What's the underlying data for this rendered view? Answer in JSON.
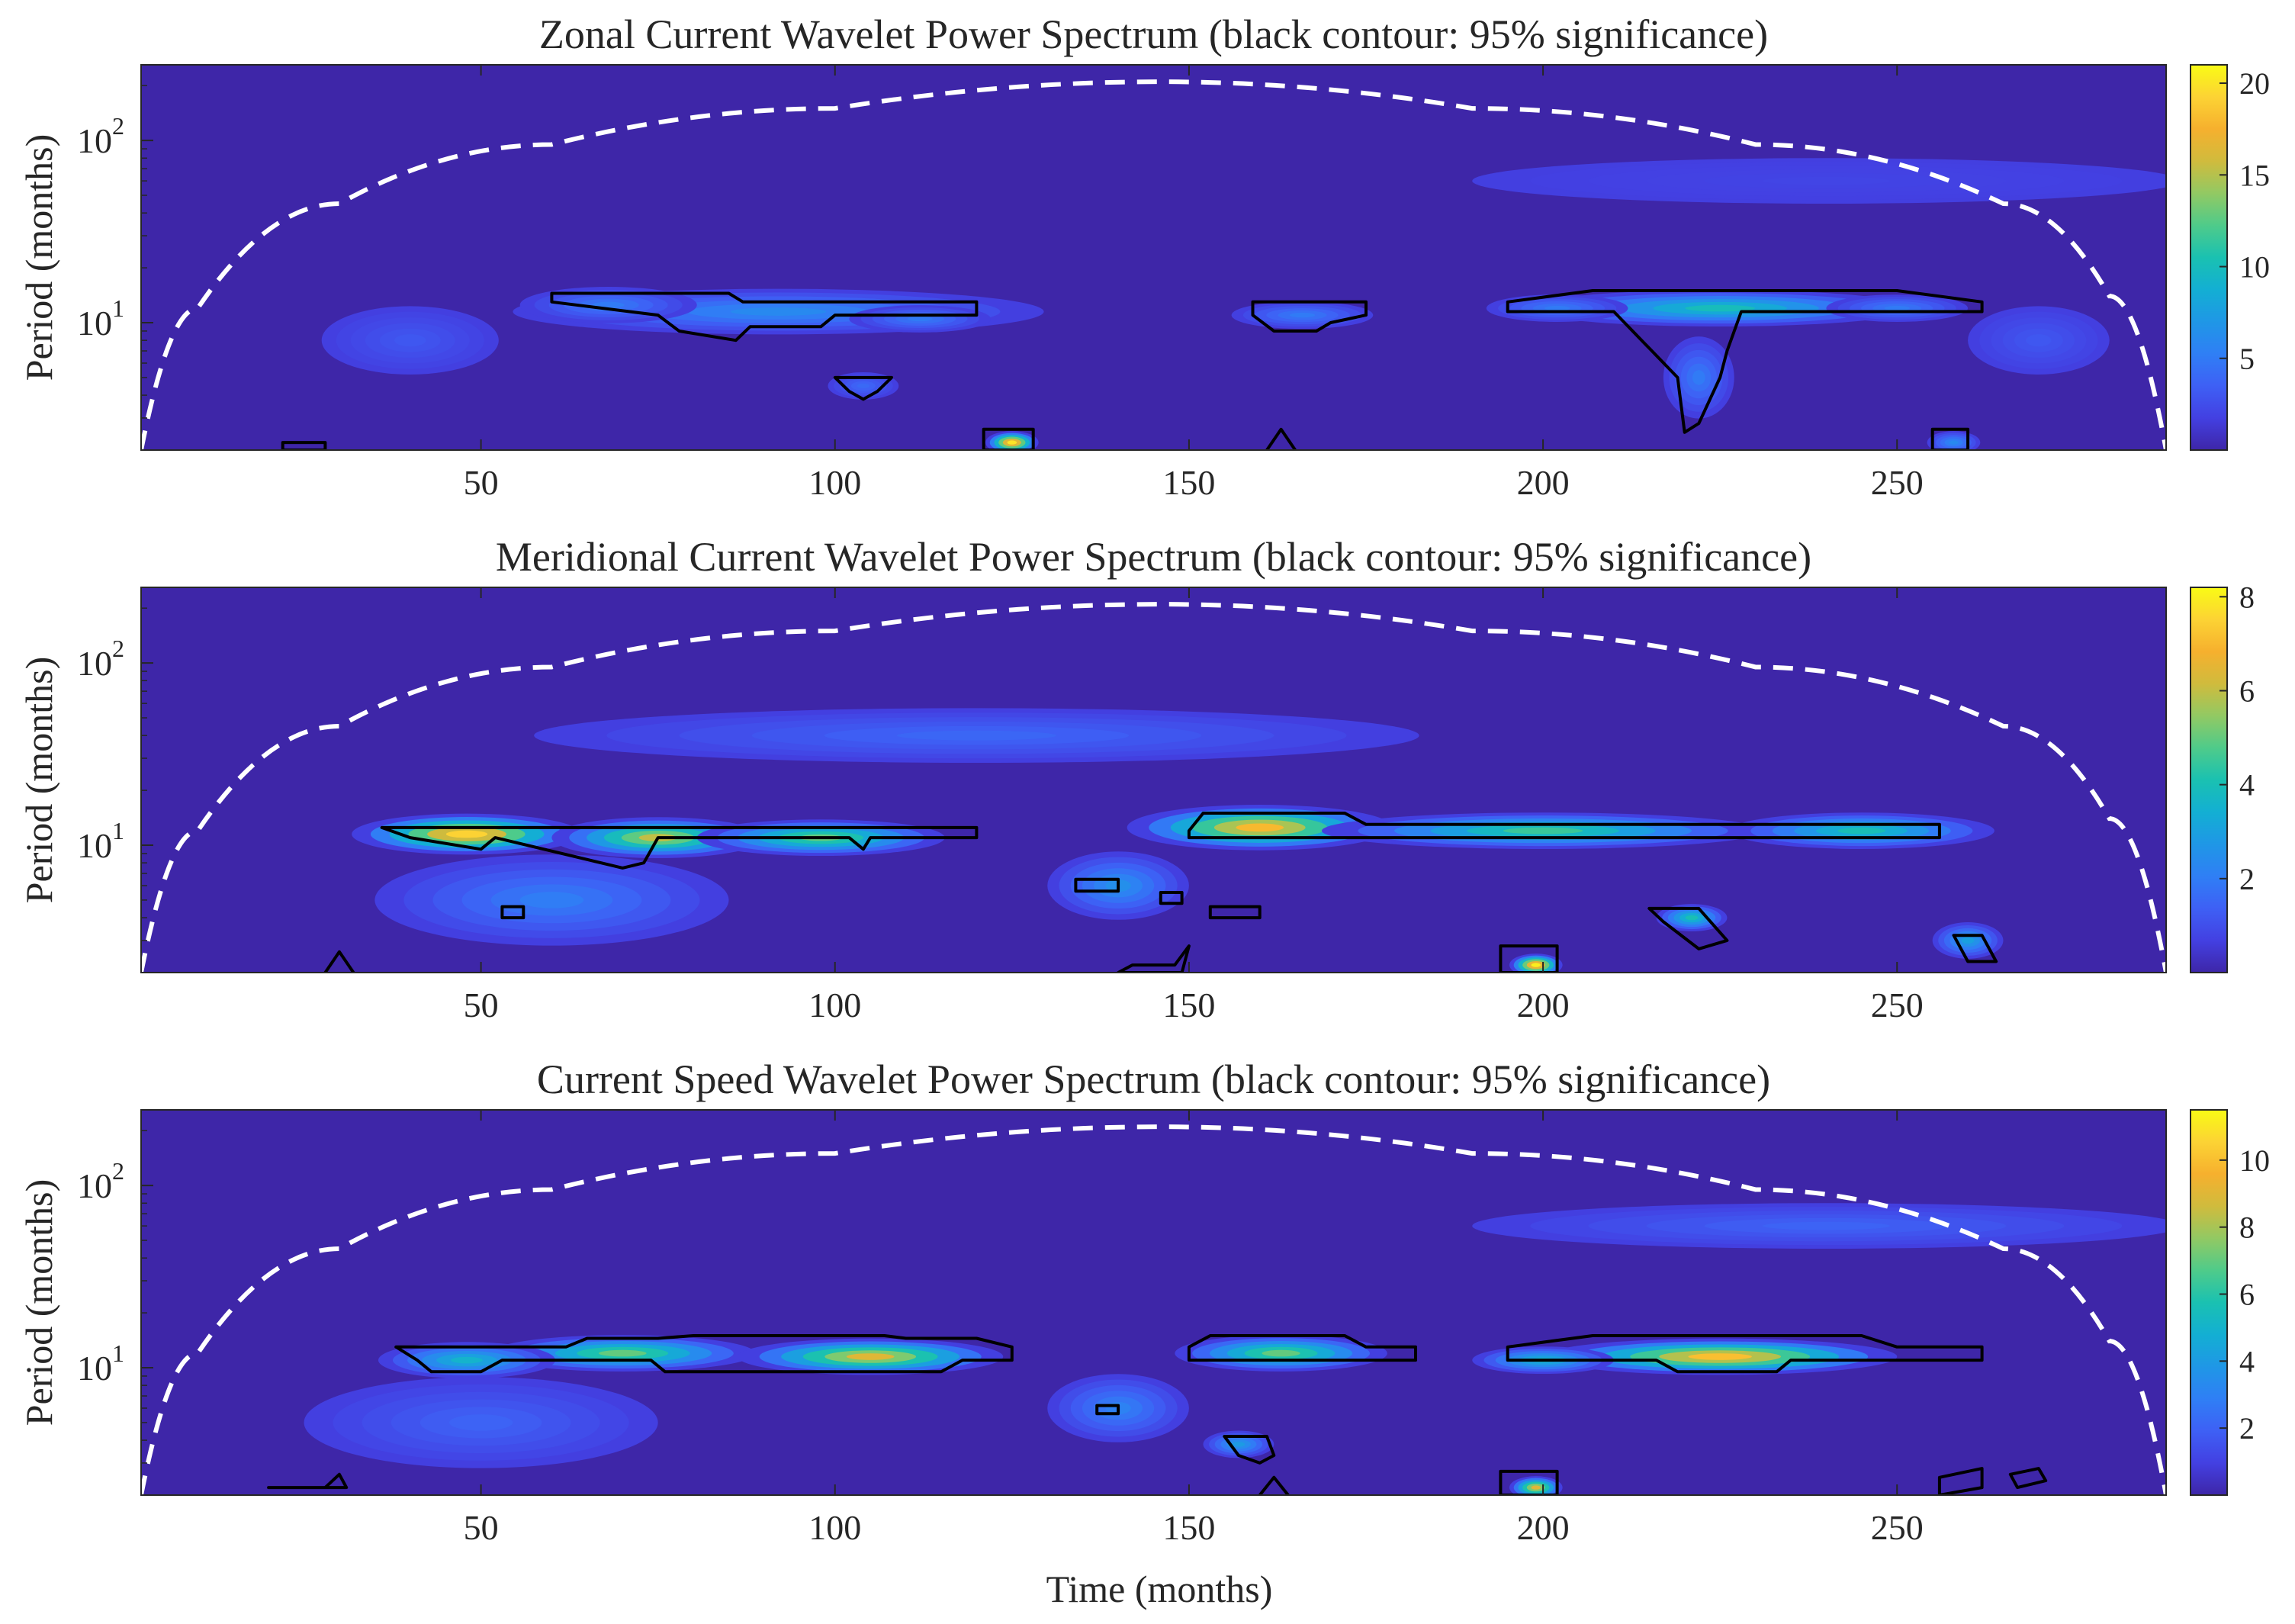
{
  "figure": {
    "xlabel": "Time (months)"
  },
  "colormap": [
    "#3e26a8",
    "#4340e2",
    "#3e60f5",
    "#2f7ff5",
    "#1f97e6",
    "#13afd3",
    "#1ac1b1",
    "#4fcb8a",
    "#92c963",
    "#d0bb3d",
    "#f6b02e",
    "#fcd334",
    "#f9fb15"
  ],
  "chart_data": [
    {
      "type": "heatmap",
      "title": "Zonal Current Wavelet Power Spectrum (black contour: 95% significance)",
      "xlabel": "",
      "ylabel": "Period (months)",
      "x_ticks": [
        50,
        100,
        150,
        200,
        250
      ],
      "y_ticks": [
        {
          "value": 10,
          "label": "10",
          "exp": "1"
        },
        {
          "value": 100,
          "label": "10",
          "exp": "2"
        }
      ],
      "xlim": [
        2,
        288
      ],
      "ylim": [
        2,
        260
      ],
      "y_scale": "log",
      "colorbar": {
        "range": [
          0,
          21
        ],
        "ticks": [
          5,
          10,
          15,
          20
        ]
      },
      "cone_of_influence": {
        "style": "white dashed",
        "x": [
          2,
          10,
          30,
          60,
          100,
          146,
          190,
          230,
          265,
          280,
          288
        ],
        "y": [
          2,
          12,
          45,
          95,
          150,
          210,
          150,
          95,
          45,
          14,
          2
        ]
      },
      "power_blobs": [
        {
          "x": 92,
          "period": 11.5,
          "power": 6,
          "dx": 30,
          "dlog": 0.1
        },
        {
          "x": 68,
          "period": 12.5,
          "power": 5,
          "dx": 10,
          "dlog": 0.08
        },
        {
          "x": 112,
          "period": 10.5,
          "power": 5,
          "dx": 8,
          "dlog": 0.06
        },
        {
          "x": 104,
          "period": 4.5,
          "power": 4,
          "dx": 4,
          "dlog": 0.06
        },
        {
          "x": 166,
          "period": 11,
          "power": 5,
          "dx": 8,
          "dlog": 0.06
        },
        {
          "x": 225,
          "period": 12,
          "power": 10,
          "dx": 22,
          "dlog": 0.08
        },
        {
          "x": 202,
          "period": 12,
          "power": 5,
          "dx": 8,
          "dlog": 0.06
        },
        {
          "x": 250,
          "period": 12,
          "power": 5,
          "dx": 8,
          "dlog": 0.06
        },
        {
          "x": 222,
          "period": 5,
          "power": 5,
          "dx": 4,
          "dlog": 0.18
        },
        {
          "x": 125,
          "period": 2.2,
          "power": 20,
          "dx": 3,
          "dlog": 0.05
        },
        {
          "x": 258,
          "period": 2.2,
          "power": 6,
          "dx": 3,
          "dlog": 0.05
        },
        {
          "x": 40,
          "period": 8,
          "power": 3,
          "dx": 10,
          "dlog": 0.15
        },
        {
          "x": 270,
          "period": 8,
          "power": 3,
          "dx": 8,
          "dlog": 0.15
        },
        {
          "x": 240,
          "period": 60,
          "power": 2,
          "dx": 40,
          "dlog": 0.1
        }
      ],
      "significance_contours": [
        {
          "x": [
            60,
            85,
            87,
            120,
            120,
            100,
            98,
            88,
            86,
            78,
            75,
            60
          ],
          "period": [
            14.5,
            14.5,
            13,
            13,
            11,
            11,
            9.5,
            9.5,
            8,
            9,
            11,
            13
          ]
        },
        {
          "x": [
            100,
            108,
            106,
            104,
            102,
            100
          ],
          "period": [
            5,
            5,
            4.2,
            3.8,
            4.2,
            5
          ]
        },
        {
          "x": [
            159,
            175,
            175,
            170,
            168,
            162,
            159
          ],
          "period": [
            13,
            13,
            11,
            10,
            9,
            9,
            11
          ]
        },
        {
          "x": [
            195,
            207,
            250,
            262,
            262,
            228,
            226,
            225,
            222,
            220,
            219,
            210,
            195
          ],
          "period": [
            13,
            15,
            15,
            13,
            11.5,
            11.5,
            7,
            5,
            2.8,
            2.5,
            5,
            11.5,
            11.5
          ]
        },
        {
          "x": [
            121,
            128,
            128,
            121
          ],
          "period": [
            2,
            2,
            2.6,
            2.6
          ]
        },
        {
          "x": [
            255,
            260,
            260,
            255
          ],
          "period": [
            2,
            2,
            2.6,
            2.6
          ]
        },
        {
          "x": [
            22,
            28,
            28,
            22
          ],
          "period": [
            2,
            2,
            2.2,
            2.2
          ]
        },
        {
          "x": [
            161,
            163,
            165
          ],
          "period": [
            2,
            2.6,
            2
          ]
        }
      ]
    },
    {
      "type": "heatmap",
      "title": "Meridional Current Wavelet Power Spectrum (black contour: 95% significance)",
      "xlabel": "",
      "ylabel": "Period (months)",
      "x_ticks": [
        50,
        100,
        150,
        200,
        250
      ],
      "y_ticks": [
        {
          "value": 10,
          "label": "10",
          "exp": "1"
        },
        {
          "value": 100,
          "label": "10",
          "exp": "2"
        }
      ],
      "xlim": [
        2,
        288
      ],
      "ylim": [
        2,
        260
      ],
      "y_scale": "log",
      "colorbar": {
        "range": [
          0,
          8.2
        ],
        "ticks": [
          2,
          4,
          6,
          8
        ]
      },
      "cone_of_influence": {
        "style": "white dashed",
        "x": [
          2,
          10,
          30,
          60,
          100,
          146,
          190,
          230,
          265,
          280,
          288
        ],
        "y": [
          2,
          12,
          45,
          95,
          150,
          210,
          150,
          95,
          45,
          14,
          2
        ]
      },
      "power_blobs": [
        {
          "x": 48,
          "period": 11.5,
          "power": 7.5,
          "dx": 13,
          "dlog": 0.09
        },
        {
          "x": 75,
          "period": 11,
          "power": 6,
          "dx": 12,
          "dlog": 0.09
        },
        {
          "x": 98,
          "period": 11,
          "power": 5,
          "dx": 14,
          "dlog": 0.08
        },
        {
          "x": 160,
          "period": 12.5,
          "power": 7,
          "dx": 15,
          "dlog": 0.1
        },
        {
          "x": 200,
          "period": 12,
          "power": 4.5,
          "dx": 25,
          "dlog": 0.08
        },
        {
          "x": 245,
          "period": 12,
          "power": 4,
          "dx": 15,
          "dlog": 0.08
        },
        {
          "x": 199,
          "period": 2.2,
          "power": 8,
          "dx": 3,
          "dlog": 0.05
        },
        {
          "x": 221,
          "period": 4,
          "power": 4,
          "dx": 4,
          "dlog": 0.06
        },
        {
          "x": 60,
          "period": 5,
          "power": 2,
          "dx": 20,
          "dlog": 0.2
        },
        {
          "x": 140,
          "period": 6,
          "power": 2.5,
          "dx": 8,
          "dlog": 0.15
        },
        {
          "x": 260,
          "period": 3,
          "power": 3,
          "dx": 4,
          "dlog": 0.08
        },
        {
          "x": 120,
          "period": 40,
          "power": 1.5,
          "dx": 50,
          "dlog": 0.12
        }
      ],
      "significance_contours": [
        {
          "x": [
            36,
            120,
            120,
            105,
            104,
            102,
            75,
            73,
            70,
            52,
            50,
            40,
            36
          ],
          "period": [
            12.5,
            12.5,
            11,
            11,
            9.5,
            11,
            11,
            8,
            7.5,
            11,
            9.5,
            11,
            12.5
          ]
        },
        {
          "x": [
            150,
            152,
            172,
            175,
            256,
            256,
            150
          ],
          "period": [
            12,
            15,
            15,
            13,
            13,
            11,
            11
          ]
        },
        {
          "x": [
            134,
            140,
            140,
            134
          ],
          "period": [
            6.5,
            6.5,
            5.6,
            5.6
          ]
        },
        {
          "x": [
            53,
            56,
            56,
            53
          ],
          "period": [
            4.6,
            4.6,
            4,
            4
          ]
        },
        {
          "x": [
            146,
            149,
            149,
            146
          ],
          "period": [
            5.5,
            5.5,
            4.8,
            4.8
          ]
        },
        {
          "x": [
            153,
            160,
            160,
            153
          ],
          "period": [
            4.6,
            4.6,
            4,
            4
          ]
        },
        {
          "x": [
            215,
            222,
            226,
            222,
            217,
            215
          ],
          "period": [
            4.5,
            4.5,
            3,
            2.7,
            3.8,
            4.5
          ]
        },
        {
          "x": [
            194,
            202,
            202,
            194
          ],
          "period": [
            2,
            2,
            2.8,
            2.8
          ]
        },
        {
          "x": [
            258,
            262,
            264,
            260,
            258
          ],
          "period": [
            3.2,
            3.2,
            2.3,
            2.3,
            3.2
          ]
        },
        {
          "x": [
            142,
            148,
            150,
            149,
            140
          ],
          "period": [
            2.2,
            2.2,
            2.8,
            2,
            2
          ]
        },
        {
          "x": [
            28,
            30,
            32
          ],
          "period": [
            2,
            2.6,
            2
          ]
        }
      ]
    },
    {
      "type": "heatmap",
      "title": "Current Speed Wavelet Power Spectrum (black contour: 95% significance)",
      "xlabel": "Time (months)",
      "ylabel": "Period (months)",
      "x_ticks": [
        50,
        100,
        150,
        200,
        250
      ],
      "y_ticks": [
        {
          "value": 10,
          "label": "10",
          "exp": "1"
        },
        {
          "value": 100,
          "label": "10",
          "exp": "2"
        }
      ],
      "xlim": [
        2,
        288
      ],
      "ylim": [
        2,
        260
      ],
      "y_scale": "log",
      "colorbar": {
        "range": [
          0,
          11.5
        ],
        "ticks": [
          2,
          4,
          6,
          8,
          10
        ]
      },
      "cone_of_influence": {
        "style": "white dashed",
        "x": [
          2,
          10,
          30,
          60,
          100,
          146,
          190,
          230,
          265,
          280,
          288
        ],
        "y": [
          2,
          12,
          45,
          95,
          150,
          210,
          150,
          95,
          45,
          14,
          2
        ]
      },
      "power_blobs": [
        {
          "x": 70,
          "period": 12,
          "power": 7,
          "dx": 15,
          "dlog": 0.08
        },
        {
          "x": 105,
          "period": 11.5,
          "power": 9,
          "dx": 15,
          "dlog": 0.08
        },
        {
          "x": 48,
          "period": 11,
          "power": 5,
          "dx": 10,
          "dlog": 0.08
        },
        {
          "x": 163,
          "period": 12,
          "power": 7,
          "dx": 12,
          "dlog": 0.08
        },
        {
          "x": 225,
          "period": 11.5,
          "power": 10,
          "dx": 20,
          "dlog": 0.08
        },
        {
          "x": 200,
          "period": 11,
          "power": 5,
          "dx": 8,
          "dlog": 0.06
        },
        {
          "x": 199,
          "period": 2.2,
          "power": 9,
          "dx": 3,
          "dlog": 0.05
        },
        {
          "x": 157,
          "period": 3.8,
          "power": 4,
          "dx": 4,
          "dlog": 0.06
        },
        {
          "x": 140,
          "period": 6,
          "power": 3,
          "dx": 8,
          "dlog": 0.15
        },
        {
          "x": 50,
          "period": 5,
          "power": 2,
          "dx": 20,
          "dlog": 0.2
        },
        {
          "x": 240,
          "period": 60,
          "power": 2,
          "dx": 40,
          "dlog": 0.1
        }
      ],
      "significance_contours": [
        {
          "x": [
            38,
            62,
            65,
            75,
            80,
            107,
            110,
            120,
            125,
            125,
            118,
            115,
            76,
            74,
            53,
            50,
            43,
            41,
            38
          ],
          "period": [
            13,
            13,
            14.5,
            14.5,
            15,
            15,
            14.5,
            14.5,
            13,
            11,
            11,
            9.5,
            9.5,
            11,
            11,
            9.5,
            9.5,
            11,
            13
          ]
        },
        {
          "x": [
            150,
            153,
            172,
            175,
            182,
            182,
            150
          ],
          "period": [
            13,
            15,
            15,
            13,
            13,
            11,
            11
          ]
        },
        {
          "x": [
            195,
            207,
            245,
            250,
            262,
            262,
            235,
            233,
            219,
            216,
            195
          ],
          "period": [
            13,
            15,
            15,
            13,
            13,
            11,
            11,
            9.5,
            9.5,
            11,
            11
          ]
        },
        {
          "x": [
            137,
            140,
            140,
            137
          ],
          "period": [
            6.2,
            6.2,
            5.6,
            5.6
          ]
        },
        {
          "x": [
            155,
            161,
            162,
            160,
            157,
            155
          ],
          "period": [
            4.2,
            4.2,
            3.3,
            3,
            3.3,
            4.2
          ]
        },
        {
          "x": [
            194,
            202,
            202,
            194
          ],
          "period": [
            2,
            2,
            2.7,
            2.7
          ]
        },
        {
          "x": [
            256,
            262,
            262,
            256
          ],
          "period": [
            2.5,
            2.8,
            2.2,
            2
          ]
        },
        {
          "x": [
            266,
            270,
            271,
            267,
            266
          ],
          "period": [
            2.6,
            2.8,
            2.4,
            2.2,
            2.6
          ]
        },
        {
          "x": [
            20,
            28,
            30,
            31
          ],
          "period": [
            2.2,
            2.2,
            2.6,
            2.2
          ]
        },
        {
          "x": [
            160,
            162,
            164
          ],
          "period": [
            2,
            2.5,
            2
          ]
        }
      ]
    }
  ]
}
